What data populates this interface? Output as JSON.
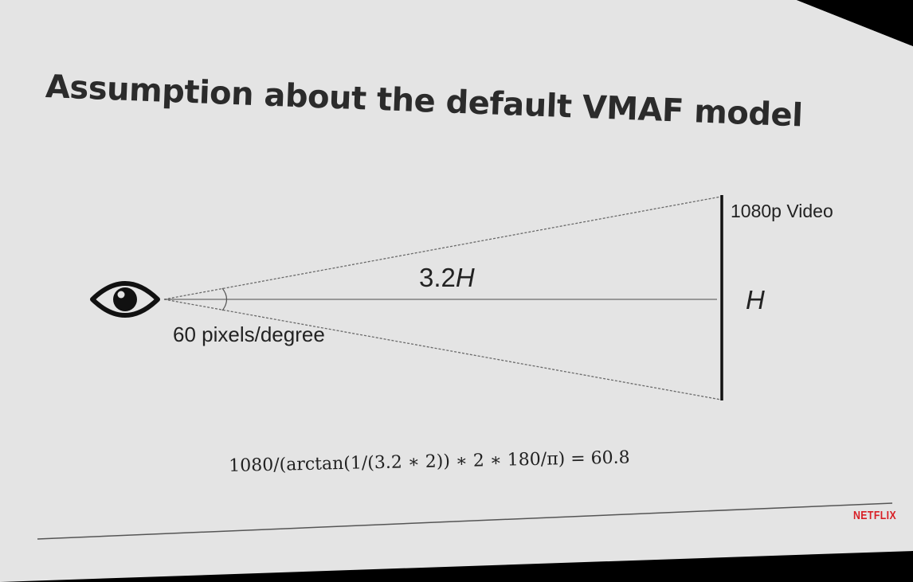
{
  "slide": {
    "title": "Assumption about the default VMAF model",
    "video_label": "1080p Video",
    "distance_label": "3.2H",
    "height_label": "H",
    "resolution_label": "60 pixels/degree",
    "formula": "1080/(arctan(1/(3.2 ∗ 2)) ∗ 2 ∗ 180/π) = 60.8",
    "brand_logo": "NETFLIX"
  },
  "colors": {
    "slide_background": "#e4e4e4",
    "outer_background": "#000000",
    "text": "#222222",
    "brand_red": "#d81f26"
  },
  "icons": {
    "viewer": "eye-icon"
  }
}
